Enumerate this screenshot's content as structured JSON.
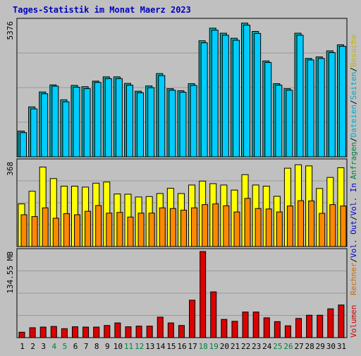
{
  "title": "Tages-Statistik im Monat Maerz 2023",
  "colors": {
    "background": "#c0c0c0",
    "title": "#0000c0",
    "frame": "#000000",
    "grid": "#9a9a9a",
    "anfragen": "#00b0b0",
    "dateien": "#00ccff",
    "seiten": "#ff9f00",
    "besuche": "#ffff00",
    "rechner": "#ff8800",
    "volumen": "#dd0000",
    "weekend_day": "#008040",
    "label_green": "#008040",
    "label_cyan": "#00a8c8",
    "label_blue": "#0000c0",
    "label_yellow": "#c8b400",
    "label_orange": "#d06800",
    "label_red": "#d00000"
  },
  "days": [
    "1",
    "2",
    "3",
    "4",
    "5",
    "6",
    "7",
    "8",
    "9",
    "10",
    "11",
    "12",
    "13",
    "14",
    "15",
    "16",
    "17",
    "18",
    "19",
    "20",
    "21",
    "22",
    "23",
    "24",
    "25",
    "26",
    "27",
    "28",
    "29",
    "30",
    "31"
  ],
  "weekend_days": [
    4,
    5,
    11,
    12,
    18,
    19,
    25,
    26
  ],
  "chart_data": [
    {
      "type": "bar",
      "panel": "top",
      "ymax_label": "5376",
      "ymax": 5376,
      "series": [
        {
          "name": "Anfragen",
          "values": [
            1020,
            1980,
            2570,
            2850,
            2260,
            2830,
            2780,
            3000,
            3170,
            3170,
            2910,
            2600,
            2810,
            3300,
            2700,
            2620,
            2900,
            4600,
            5100,
            4900,
            4700,
            5300,
            4970,
            3800,
            2900,
            2700,
            4900,
            3900,
            3960,
            4200,
            4440
          ]
        },
        {
          "name": "Dateien",
          "values": [
            960,
            1900,
            2500,
            2800,
            2180,
            2760,
            2700,
            2950,
            3100,
            3100,
            2840,
            2540,
            2740,
            3220,
            2640,
            2560,
            2830,
            4520,
            5020,
            4820,
            4620,
            5220,
            4890,
            3740,
            2840,
            2640,
            4820,
            3840,
            3900,
            4130,
            4380
          ]
        }
      ],
      "right_labels": [
        "Anfragen",
        "/",
        "Dateien",
        "/",
        "Seiten",
        "/",
        "Besuche"
      ]
    },
    {
      "type": "bar",
      "panel": "middle",
      "ymax_label": "368",
      "ymax": 368,
      "series": [
        {
          "name": "Besuche",
          "values": [
            185,
            240,
            345,
            295,
            262,
            262,
            258,
            275,
            280,
            228,
            227,
            215,
            217,
            230,
            253,
            230,
            267,
            284,
            273,
            267,
            245,
            312,
            267,
            262,
            218,
            340,
            355,
            350,
            252,
            300,
            342
          ]
        },
        {
          "name": "Seiten",
          "values": [
            138,
            130,
            168,
            123,
            143,
            138,
            153,
            178,
            145,
            148,
            128,
            145,
            145,
            168,
            165,
            158,
            168,
            182,
            185,
            177,
            150,
            209,
            165,
            163,
            150,
            176,
            199,
            198,
            144,
            182,
            176
          ]
        }
      ],
      "right_labels": [
        "Rechner",
        "/",
        "Vol. Out",
        "/",
        "Vol. In"
      ]
    },
    {
      "type": "bar",
      "panel": "bottom",
      "ymax_label": "134.55 MB",
      "ymax": 134.55,
      "series": [
        {
          "name": "Volumen",
          "values": [
            8.5,
            15.5,
            16.5,
            17.5,
            14,
            17,
            16.5,
            16.5,
            19,
            23,
            17,
            18,
            18,
            32,
            23,
            19,
            58.5,
            134.5,
            71.5,
            28.5,
            25.5,
            40,
            40,
            31,
            25,
            18.5,
            30,
            35,
            35,
            45,
            51
          ]
        }
      ],
      "right_labels": [
        "Volumen"
      ]
    }
  ]
}
